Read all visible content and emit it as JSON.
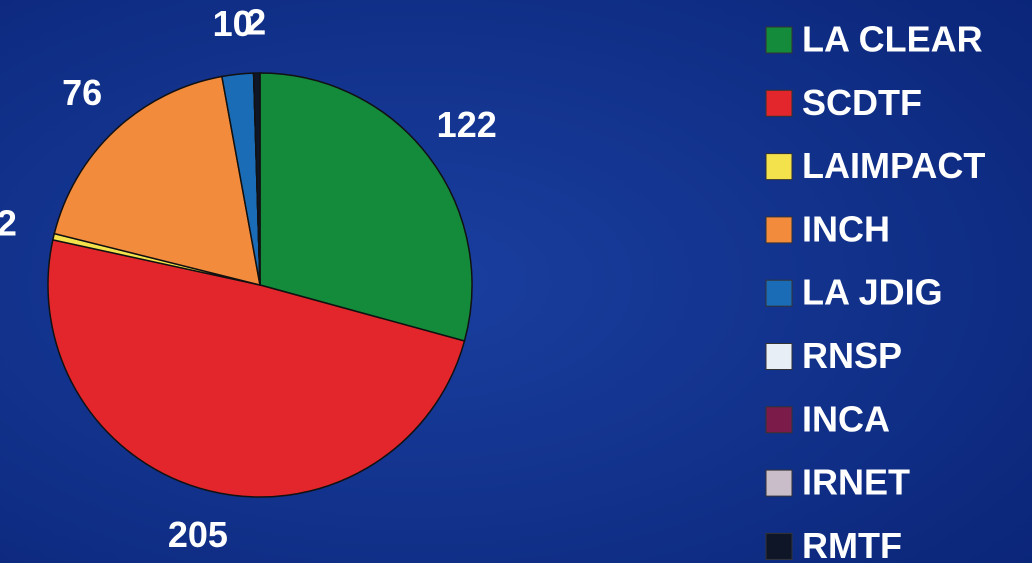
{
  "chart_data": {
    "type": "pie",
    "categories": [
      "LA CLEAR",
      "SCDTF",
      "LAIMPACT",
      "INCH",
      "LA JDIG",
      "RNSP",
      "INCA",
      "IRNET",
      "RMTF"
    ],
    "values": [
      122,
      205,
      2,
      76,
      10,
      0,
      0,
      0,
      2
    ],
    "colors": [
      "#148a3b",
      "#e2262b",
      "#f3e24c",
      "#f38b3d",
      "#1b6cb6",
      "#e8eef5",
      "#7b1b49",
      "#c9bdca",
      "#0f1627"
    ],
    "legend": "right"
  }
}
